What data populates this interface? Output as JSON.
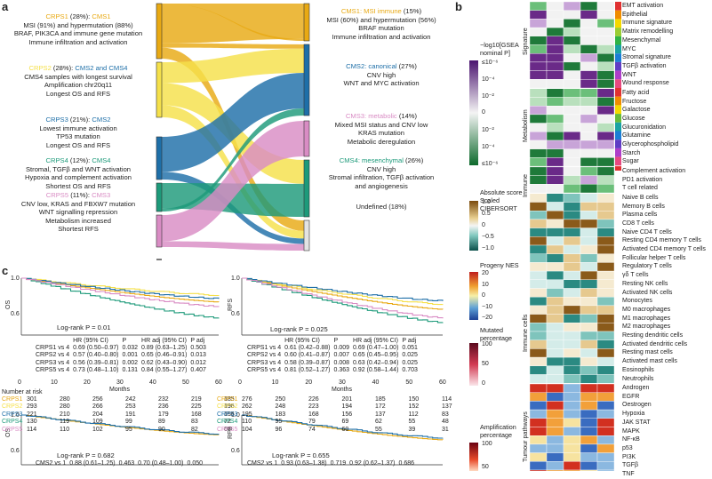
{
  "panels": {
    "a": "a",
    "b": "b",
    "c": "c"
  },
  "colors": {
    "crps1": "#e8a913",
    "crps2": "#f5e04a",
    "crps3": "#1e6fa8",
    "crps4": "#1d9a7a",
    "crps5": "#d98cc4",
    "cms1": "#e8a913",
    "cms2": "#1e6fa8",
    "cms3": "#d98cc4",
    "cms4": "#1d9a7a",
    "undef": "#e3e3e3"
  },
  "subtypes": [
    {
      "name": "CRPS1",
      "pct": " (28%): ",
      "cms": "CMS1",
      "lines": [
        "MSI (91%) and hypermutation (88%)",
        "BRAF, PIK3CA and immune gene mutation",
        "Immune infiltration and activation"
      ]
    },
    {
      "name": "CRPS2",
      "pct": " (28%): ",
      "cms": "CMS2 and CMS4",
      "lines": [
        "CMS4 samples with longest survival",
        "Amplification chr20q11",
        "Longest OS and RFS"
      ]
    },
    {
      "name": "CRPS3",
      "pct": " (21%): ",
      "cms": "CMS2",
      "lines": [
        "Lowest immune activation",
        "TP53 mutation",
        "Longest OS and RFS"
      ]
    },
    {
      "name": "CRPS4",
      "pct": " (12%): ",
      "cms": "CMS4",
      "lines": [
        "Stromal, TGFβ and WNT activation",
        "Hypoxia and complement activation",
        "Shortest OS and RFS"
      ]
    },
    {
      "name": "CRPS5",
      "pct": " (11%): ",
      "cms": "CMS3",
      "lines": [
        "CNV low, KRAS and FBXW7 mutation",
        "WNT signalling repression",
        "Metabolism increased",
        "Shortest RFS"
      ]
    }
  ],
  "cms": [
    {
      "name": "CMS1: MSI immune",
      "pct": " (15%)",
      "lines": [
        "MSI (60%) and hypermutation (56%)",
        "BRAF mutation",
        "Immune infiltration and activation"
      ]
    },
    {
      "name": "CMS2: canonical",
      "pct": " (27%)",
      "lines": [
        "CNV high",
        "WNT and MYC activation"
      ]
    },
    {
      "name": "CMS3: metabolic",
      "pct": " (14%)",
      "lines": [
        "Mixed MSI status and CNV low",
        "KRAS mutation",
        "Metabolic deregulation"
      ]
    },
    {
      "name": "CMS4: mesenchymal",
      "pct": " (26%)",
      "lines": [
        "CNV high",
        "Stromal infiltration, TGFβ activation",
        "and angiogenesis"
      ]
    },
    {
      "name": "Undefined (18%)",
      "pct": "",
      "lines": []
    }
  ],
  "heatmap_b": {
    "groups": [
      "Signature",
      "Metabolism",
      "Immune",
      "Immune cells",
      "Tumour pathways"
    ],
    "rows": [
      "EMT activation",
      "Epithelial",
      "Immune signature",
      "Matrix remodelling",
      "Mesenchymal",
      "MYC",
      "Stromal signature",
      "TGFβ activation",
      "WNT",
      "Wound response",
      "Fatty acid",
      "Fructose",
      "Galactose",
      "Glucose",
      "Glucuronidation",
      "Glutamine",
      "Glycerophospholipid",
      "Starch",
      "Sugar",
      "Complement activation",
      "PD1 activation",
      "T cell related",
      "Naive B cells",
      "Memory B cells",
      "Plasma cells",
      "CD8 T cells",
      "Naive CD4 T cells",
      "Resting CD4 memory T cells",
      "Activated CD4 memory T cells",
      "Follicular helper T cells",
      "Regulatory T cells",
      "γδ T cells",
      "Resting NK cells",
      "Activated NK cells",
      "Monocytes",
      "M0 macrophages",
      "M1 macrophages",
      "M2 macrophages",
      "Resting dendritic cells",
      "Activated dendritic cells",
      "Resting mast cells",
      "Activated mast cells",
      "Eosinophils",
      "Neutrophils",
      "Androgen",
      "EGFR",
      "Oestrogen",
      "Hypoxia",
      "JAK STAT",
      "MAPK",
      "NF-κB",
      "p53",
      "PI3K",
      "TGFβ",
      "TNF"
    ]
  },
  "legends": {
    "gsea": {
      "title": "−log10[GSEA nominal P]",
      "ticks": [
        "≤10⁻⁶",
        "10⁻⁴",
        "10⁻²",
        "0",
        "10⁻²",
        "10⁻⁴",
        "≤10⁻⁶"
      ]
    },
    "cibersort": {
      "title": "Absolute score Scaled CIBERSORT",
      "ticks": [
        "1.0",
        "0.5",
        "0",
        "−0.5",
        "−1.0"
      ]
    },
    "progeny": {
      "title": "Progeny NES",
      "ticks": [
        "20",
        "10",
        "0",
        "−10",
        "−20"
      ]
    },
    "mutated": {
      "title": "Mutated percentage",
      "ticks": [
        "100",
        "50",
        "0"
      ]
    },
    "amplification": {
      "title": "Amplification percentage",
      "ticks": [
        "100",
        "50"
      ]
    }
  },
  "km": {
    "os_ylabel": "OS",
    "rfs_ylabel": "RFS",
    "os_top": {
      "logrank": "Log-rank P = 0.01"
    },
    "rfs_top": {
      "logrank": "Log-rank P = 0.025"
    },
    "os_bottom": {
      "logrank": "Log-rank P = 0.682"
    },
    "rfs_bottom": {
      "logrank": "Log-rank P = 0.655"
    },
    "table_header": [
      "",
      "HR (95% CI)",
      "P",
      "HR adj (95% CI)",
      "P adj"
    ],
    "os_table": [
      [
        "CRPS1 vs 4",
        "0.69 (0.50–0.97)",
        "0.032",
        "0.89 (0.63–1.25)",
        "0.503"
      ],
      [
        "CRPS2 vs 4",
        "0.57 (0.40–0.80)",
        "0.001",
        "0.65 (0.46–0.91)",
        "0.013"
      ],
      [
        "CRPS3 vs 4",
        "0.56 (0.39–0.81)",
        "0.002",
        "0.62 (0.43–0.90)",
        "0.012"
      ],
      [
        "CRPS5 vs 4",
        "0.73 (0.48–1.10)",
        "0.131",
        "0.84 (0.55–1.27)",
        "0.407"
      ]
    ],
    "rfs_table": [
      [
        "CRPS1 vs 4",
        "0.61 (0.42–0.88)",
        "0.009",
        "0.69 (0.47–1.00)",
        "0.051"
      ],
      [
        "CRPS2 vs 4",
        "0.60 (0.41–0.87)",
        "0.007",
        "0.65 (0.45–0.95)",
        "0.025"
      ],
      [
        "CRPS3 vs 4",
        "0.58 (0.39–0.87)",
        "0.008",
        "0.63 (0.42–0.94)",
        "0.025"
      ],
      [
        "CRPS5 vs 4",
        "0.81 (0.52–1.27)",
        "0.363",
        "0.92 (0.58–1.44)",
        "0.703"
      ]
    ],
    "os_bottom_row": [
      "CMS2 vs 1",
      "0.88 (0.61–1.25)",
      "0.463",
      "0.70 (0.48–1.00)",
      "0.050"
    ],
    "rfs_bottom_row": [
      "CMS2 vs 1",
      "0.93 (0.63–1.38)",
      "0.719",
      "0.92 (0.62–1.37)",
      "0.686"
    ],
    "xticks": [
      "0",
      "10",
      "20",
      "30",
      "40",
      "50",
      "60"
    ],
    "xlabel": "Months",
    "yticks": [
      "1.0",
      "0.6"
    ],
    "number_at_risk": "Number at risk",
    "risk_labels": [
      "CRPS1",
      "CRPS2",
      "CRPS3",
      "CRPS4",
      "CRPS5"
    ],
    "os_risk": [
      [
        "301",
        "280",
        "256",
        "242",
        "232",
        "219",
        "185"
      ],
      [
        "293",
        "280",
        "266",
        "253",
        "236",
        "225",
        "196"
      ],
      [
        "221",
        "210",
        "204",
        "191",
        "179",
        "168",
        "156"
      ],
      [
        "130",
        "119",
        "109",
        "99",
        "89",
        "83",
        "72"
      ],
      [
        "114",
        "110",
        "102",
        "95",
        "90",
        "82",
        "65"
      ]
    ],
    "rfs_risk": [
      [
        "276",
        "250",
        "226",
        "201",
        "185",
        "150",
        "114"
      ],
      [
        "262",
        "248",
        "223",
        "194",
        "172",
        "152",
        "137"
      ],
      [
        "195",
        "183",
        "168",
        "156",
        "137",
        "112",
        "83"
      ],
      [
        "110",
        "95",
        "79",
        "69",
        "62",
        "55",
        "48"
      ],
      [
        "104",
        "96",
        "74",
        "60",
        "55",
        "39",
        "31"
      ]
    ],
    "bottom_yticks": [
      "1.0",
      "0.6"
    ]
  }
}
